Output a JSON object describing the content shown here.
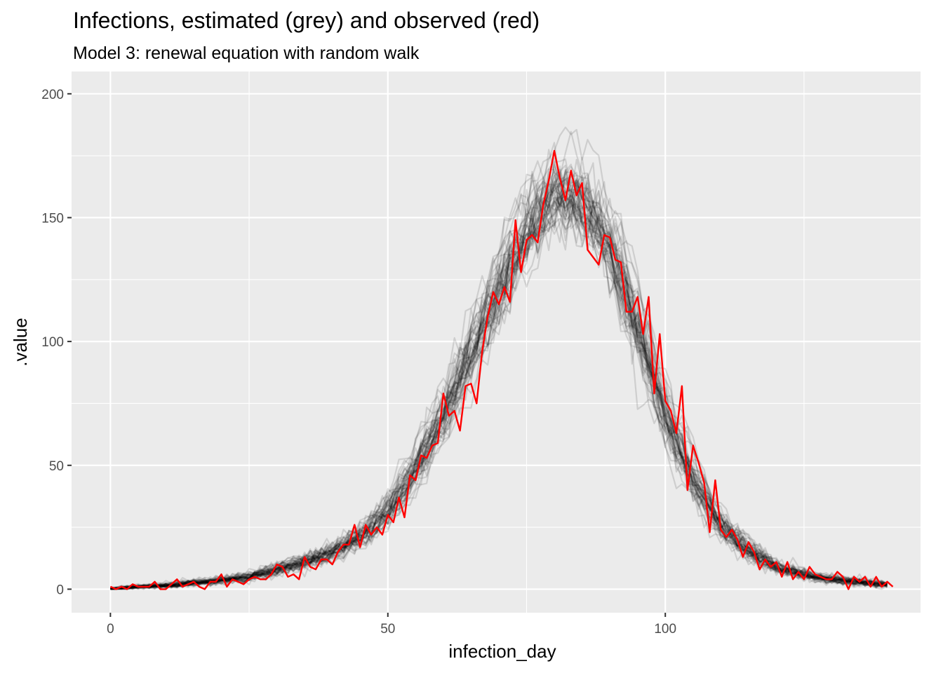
{
  "chart_data": {
    "type": "line",
    "title": "Infections, estimated (grey) and observed (red)",
    "subtitle": "Model 3: renewal equation with random walk",
    "xlabel": "infection_day",
    "ylabel": ".value",
    "xlim": [
      -7,
      146
    ],
    "ylim": [
      -9.5,
      209
    ],
    "x_ticks": [
      0,
      50,
      100
    ],
    "y_ticks": [
      0,
      50,
      100,
      150,
      200
    ],
    "x_tick_labels": [
      "0",
      "50",
      "100"
    ],
    "y_tick_labels": [
      "0",
      "50",
      "100",
      "150",
      "200"
    ],
    "grid": true,
    "legend": "none",
    "colors": {
      "panel_background": "#ebebeb",
      "grid_major": "#ffffff",
      "estimated": "#000000",
      "observed": "#ff0000"
    },
    "series": [
      {
        "role": "estimated",
        "draws": 50,
        "opacity": 0.12,
        "x": [
          0,
          5,
          10,
          15,
          20,
          25,
          30,
          35,
          40,
          45,
          50,
          55,
          60,
          65,
          70,
          72,
          75,
          78,
          80,
          83,
          85,
          88,
          90,
          93,
          95,
          100,
          105,
          110,
          115,
          120,
          125,
          130,
          135,
          140
        ],
        "values": [
          0,
          1,
          1.5,
          2.5,
          3.5,
          5,
          8,
          11,
          15,
          21,
          31,
          48,
          70,
          95,
          120,
          132,
          145,
          155,
          160,
          161,
          158,
          150,
          140,
          122,
          108,
          72,
          46,
          26,
          16,
          9,
          6,
          4,
          3,
          2
        ]
      },
      {
        "role": "observed",
        "x": [
          0,
          1,
          2,
          3,
          4,
          5,
          6,
          7,
          8,
          9,
          10,
          11,
          12,
          13,
          14,
          15,
          16,
          17,
          18,
          19,
          20,
          21,
          22,
          23,
          24,
          25,
          26,
          27,
          28,
          29,
          30,
          31,
          32,
          33,
          34,
          35,
          36,
          37,
          38,
          39,
          40,
          41,
          42,
          43,
          44,
          45,
          46,
          47,
          48,
          49,
          50,
          51,
          52,
          53,
          54,
          55,
          56,
          57,
          58,
          59,
          60,
          61,
          62,
          63,
          64,
          65,
          66,
          67,
          68,
          69,
          70,
          71,
          72,
          73,
          74,
          75,
          76,
          77,
          78,
          79,
          80,
          81,
          82,
          83,
          84,
          85,
          86,
          87,
          88,
          89,
          90,
          91,
          92,
          93,
          94,
          95,
          96,
          97,
          98,
          99,
          100,
          101,
          102,
          103,
          104,
          105,
          106,
          107,
          108,
          109,
          110,
          111,
          112,
          113,
          114,
          115,
          116,
          117,
          118,
          119,
          120,
          121,
          122,
          123,
          124,
          125,
          126,
          127,
          128,
          129,
          130,
          131,
          132,
          133,
          134,
          135,
          136,
          137,
          138,
          139,
          140,
          141
        ],
        "values": [
          1,
          0,
          1,
          0,
          2,
          1,
          1,
          1,
          3,
          0,
          0,
          2,
          4,
          1,
          2,
          3,
          1,
          0,
          3,
          3,
          6,
          1,
          4,
          3,
          2,
          4,
          5,
          4,
          4,
          6,
          10,
          9,
          5,
          6,
          4,
          13,
          9,
          8,
          12,
          12,
          10,
          15,
          18,
          18,
          26,
          17,
          26,
          22,
          25,
          22,
          30,
          27,
          37,
          29,
          46,
          44,
          54,
          53,
          58,
          59,
          79,
          70,
          72,
          64,
          82,
          83,
          75,
          96,
          110,
          120,
          115,
          122,
          116,
          149,
          128,
          141,
          143,
          140,
          155,
          165,
          177,
          166,
          157,
          169,
          159,
          164,
          137,
          134,
          131,
          143,
          142,
          133,
          132,
          112,
          112,
          118,
          103,
          118,
          79,
          103,
          76,
          72,
          63,
          82,
          40,
          58,
          51,
          43,
          23,
          44,
          24,
          21,
          24,
          20,
          13,
          19,
          15,
          8,
          12,
          9,
          11,
          5,
          11,
          4,
          7,
          4,
          9,
          6,
          5,
          4,
          4,
          7,
          5,
          0,
          5,
          3,
          5,
          1,
          5,
          1,
          3,
          1
        ]
      }
    ]
  }
}
